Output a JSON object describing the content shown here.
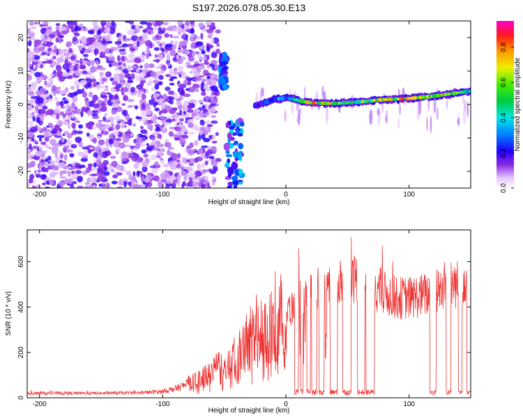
{
  "title": "S197.2026.078.05.30.E13",
  "chart_data": [
    {
      "type": "heatmap",
      "xlabel": "Height of straight line (km)",
      "ylabel": "Frequency (Hz)",
      "xlim": [
        -210,
        150
      ],
      "ylim": [
        -25,
        25
      ],
      "xticks": [
        -200,
        -100,
        0,
        100
      ],
      "yticks": [
        -20,
        -10,
        0,
        10,
        20
      ],
      "colorbar": {
        "label": "Normalized spectral amplitude",
        "range": [
          0,
          0.95
        ],
        "ticks": [
          0.0,
          0.2,
          0.4,
          0.6,
          0.8
        ]
      },
      "noise_region_x": [
        -210,
        -55
      ],
      "burst_segments": [
        {
          "x": [
            -53,
            -48
          ],
          "freq": [
            5,
            15
          ],
          "peak_amplitude": 0.25
        },
        {
          "x": [
            -48,
            -35
          ],
          "freq": [
            -25,
            -5
          ],
          "peak_amplitude": 0.3
        }
      ],
      "signal_track": [
        {
          "x": -25,
          "freq": -0.5,
          "amplitude": 0.2
        },
        {
          "x": -10,
          "freq": 1.5,
          "amplitude": 0.35
        },
        {
          "x": 0,
          "freq": 2.0,
          "amplitude": 0.4
        },
        {
          "x": 20,
          "freq": 0.5,
          "amplitude": 0.9
        },
        {
          "x": 40,
          "freq": 0.3,
          "amplitude": 0.8
        },
        {
          "x": 60,
          "freq": 0.8,
          "amplitude": 0.7
        },
        {
          "x": 80,
          "freq": 1.5,
          "amplitude": 0.85
        },
        {
          "x": 100,
          "freq": 1.8,
          "amplitude": 0.9
        },
        {
          "x": 120,
          "freq": 2.5,
          "amplitude": 0.75
        },
        {
          "x": 135,
          "freq": 3.3,
          "amplitude": 0.85
        },
        {
          "x": 150,
          "freq": 4.0,
          "amplitude": 0.5
        }
      ]
    },
    {
      "type": "line",
      "xlabel": "Height of straight line (km)",
      "ylabel": "SNR (10 * v/v)",
      "xlim": [
        -210,
        150
      ],
      "ylim": [
        0,
        740
      ],
      "xticks": [
        -200,
        -100,
        0,
        100
      ],
      "yticks": [
        0,
        200,
        400,
        600
      ],
      "color": "#ee3333",
      "series": [
        {
          "name": "SNR",
          "x": [
            -210,
            -180,
            -150,
            -120,
            -100,
            -90,
            -80,
            -70,
            -60,
            -50,
            -40,
            -30,
            -20,
            -10,
            0,
            10,
            20,
            30,
            40,
            45,
            50,
            60,
            70,
            80,
            90,
            100,
            110,
            120,
            130,
            140,
            150
          ],
          "y": [
            20,
            20,
            20,
            22,
            28,
            40,
            60,
            80,
            110,
            150,
            200,
            250,
            300,
            340,
            380,
            420,
            460,
            480,
            500,
            520,
            520,
            530,
            500,
            460,
            440,
            440,
            450,
            460,
            500,
            500,
            560
          ]
        }
      ]
    }
  ]
}
